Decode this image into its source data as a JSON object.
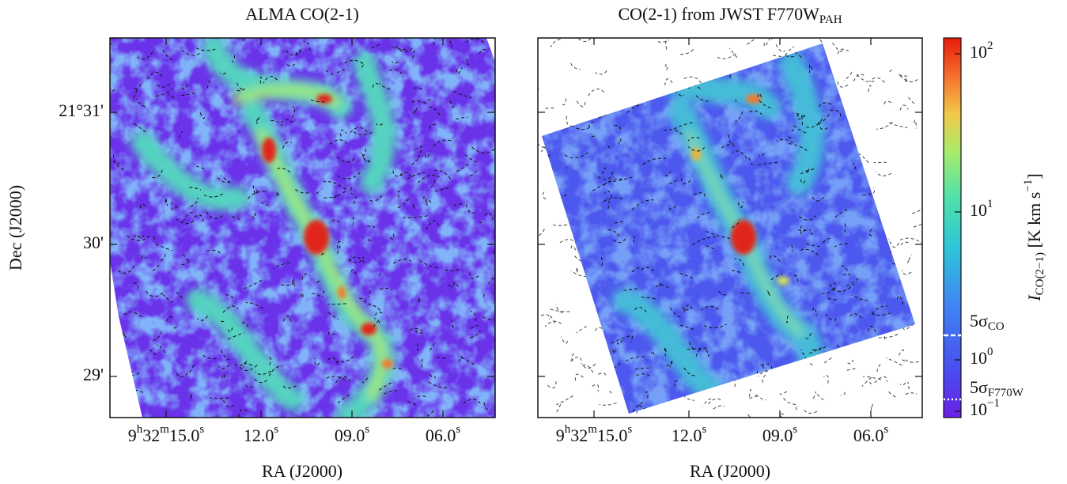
{
  "panels": [
    {
      "title": [
        {
          "text": "ALMA CO(2-1)"
        }
      ],
      "dec_ticks": [
        "21°31'",
        "30'",
        "29'"
      ],
      "ra_ticks": [
        [
          {
            "text": "9"
          },
          {
            "sup": "h"
          },
          {
            "text": "32"
          },
          {
            "sup": "m"
          },
          {
            "text": "15.0"
          },
          {
            "sup": "s"
          }
        ],
        [
          {
            "text": "12.0"
          },
          {
            "sup": "s"
          }
        ],
        [
          {
            "text": "09.0"
          },
          {
            "sup": "s"
          }
        ],
        [
          {
            "text": "06.0"
          },
          {
            "sup": "s"
          }
        ]
      ],
      "xlabel": "RA (J2000)",
      "ylabel": "Dec (J2000)"
    },
    {
      "title": [
        {
          "text": "CO(2-1) from JWST F770W"
        },
        {
          "sub": "PAH"
        }
      ],
      "ra_ticks": [
        [
          {
            "text": "9"
          },
          {
            "sup": "h"
          },
          {
            "text": "32"
          },
          {
            "sup": "m"
          },
          {
            "text": "15.0"
          },
          {
            "sup": "s"
          }
        ],
        [
          {
            "text": "12.0"
          },
          {
            "sup": "s"
          }
        ],
        [
          {
            "text": "09.0"
          },
          {
            "sup": "s"
          }
        ],
        [
          {
            "text": "06.0"
          },
          {
            "sup": "s"
          }
        ]
      ],
      "xlabel": "RA (J2000)"
    }
  ],
  "colorbar": {
    "label": [
      {
        "text": "I"
      },
      {
        "sub": "CO(2−1)"
      },
      {
        "text": " [K km s"
      },
      {
        "sup": "−1"
      },
      {
        "text": "]"
      }
    ],
    "ticks": [
      [
        {
          "text": "10"
        },
        {
          "sup": "2"
        }
      ],
      [
        {
          "text": "10"
        },
        {
          "sup": "1"
        }
      ],
      [
        {
          "text": "10"
        },
        {
          "sup": "0"
        }
      ],
      [
        {
          "text": "10"
        },
        {
          "sup": "−1"
        }
      ]
    ],
    "thresholds": [
      [
        {
          "text": "5σ"
        },
        {
          "sub": "CO"
        }
      ],
      [
        {
          "text": "5σ"
        },
        {
          "sub": "F770W"
        }
      ]
    ]
  }
}
